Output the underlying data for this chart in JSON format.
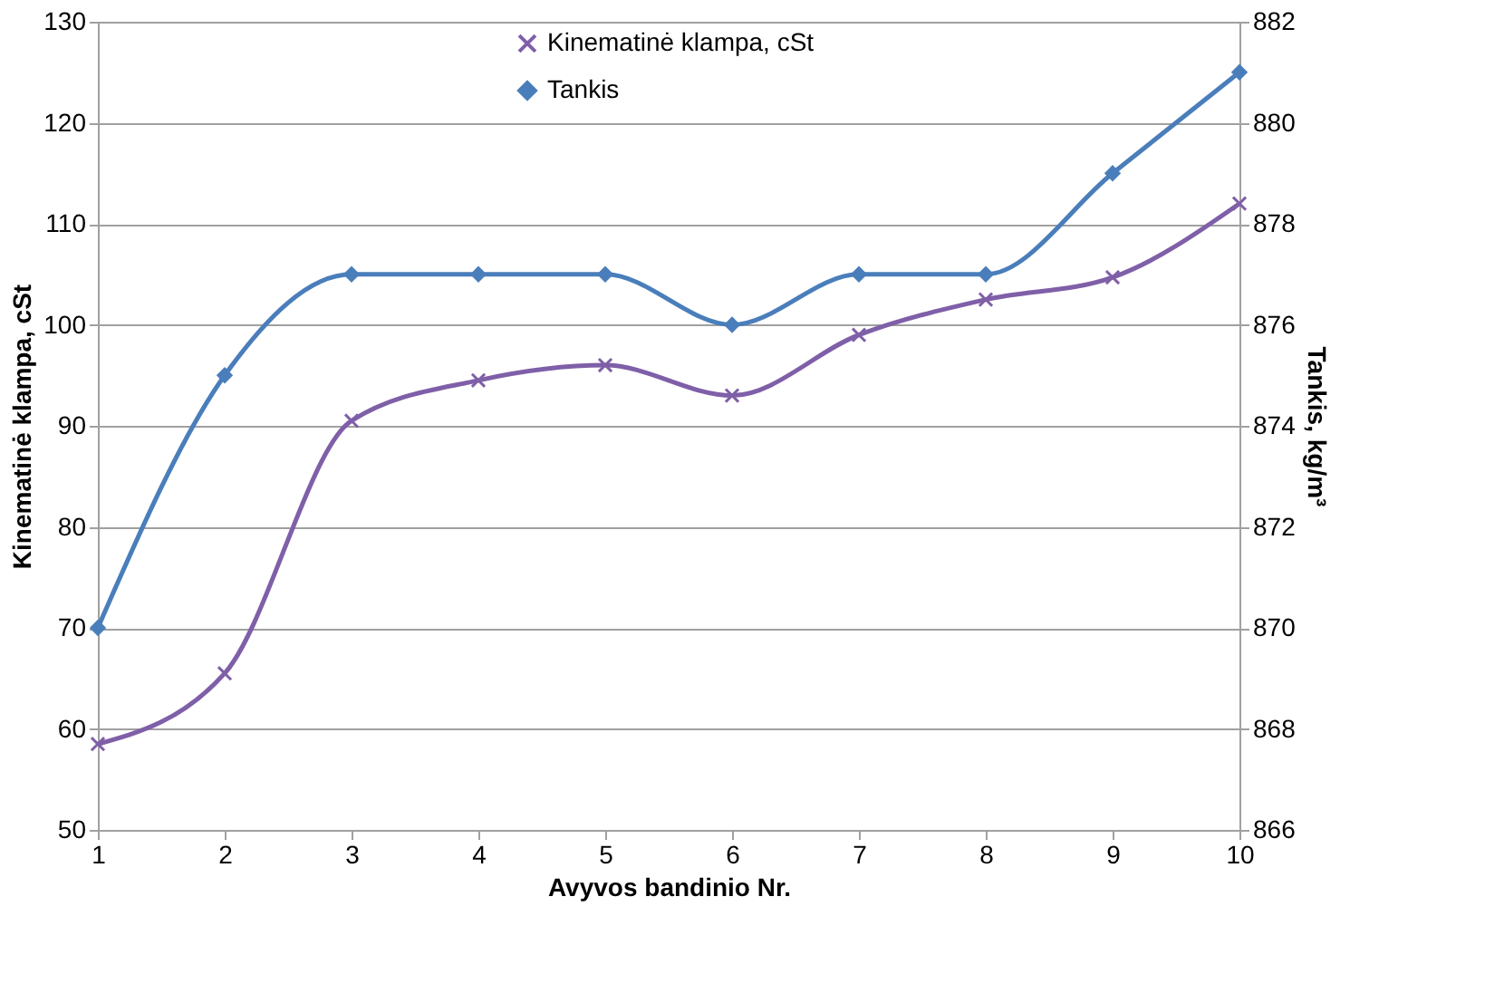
{
  "chart_data": {
    "type": "line",
    "xlabel": "Avyvos bandinio  Nr.",
    "ylabel": "Kinematinė klampa, cSt",
    "y2label": "Tankis, kg/m³",
    "x": [
      1,
      2,
      3,
      4,
      5,
      6,
      7,
      8,
      9,
      10
    ],
    "series": [
      {
        "name": "Kinematinė klampa, cSt",
        "color": "#7f5fa8",
        "marker": "cross",
        "values": [
          58.5,
          65.5,
          90.5,
          94.5,
          96,
          93,
          99,
          102.5,
          104.7,
          112
        ]
      },
      {
        "name": "Tankis",
        "color": "#4a7ebb",
        "marker": "diamond",
        "axis": "y2",
        "values": [
          870,
          875,
          877,
          877,
          877,
          876,
          877,
          877,
          879,
          881
        ]
      }
    ],
    "xlim": [
      1,
      10
    ],
    "xticks": [
      1,
      2,
      3,
      4,
      5,
      6,
      7,
      8,
      9,
      10
    ],
    "ylim": [
      50,
      130
    ],
    "yticks": [
      50,
      60,
      70,
      80,
      90,
      100,
      110,
      120,
      130
    ],
    "y2lim": [
      866,
      882
    ],
    "y2ticks": [
      866,
      868,
      870,
      872,
      874,
      876,
      878,
      880,
      882
    ],
    "grid": "y",
    "legend": "top",
    "line_style": "solid"
  }
}
